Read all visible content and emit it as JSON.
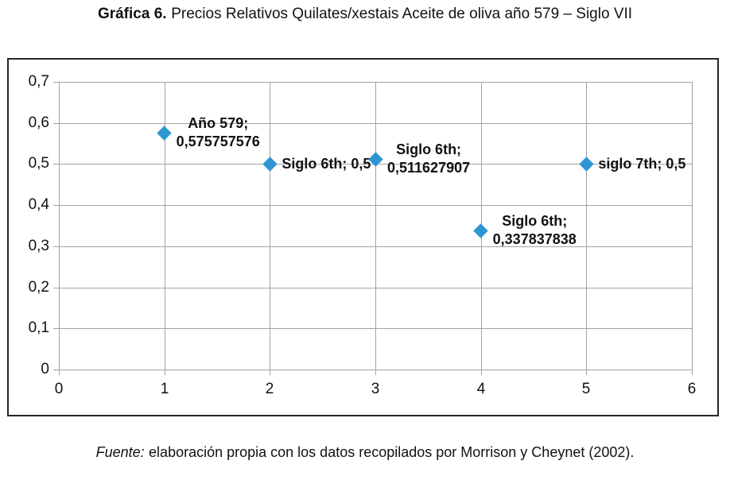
{
  "page": {
    "title_prefix": "Gráfica 6.",
    "title_rest": "Precios Relativos Quilates/xestais Aceite de oliva año 579 – Siglo VII",
    "source_prefix": "Fuente:",
    "source_rest": "elaboración propia con los datos recopilados por Morrison y Cheynet (2002)."
  },
  "colors": {
    "marker": "#2E96D2",
    "grid": "#A3A3A3",
    "chart_border": "#262626",
    "text": "#121212"
  },
  "chart_data": {
    "type": "scatter",
    "title": "Gráfica 6. Precios Relativos Quilates/xestais Aceite de oliva año 579 – Siglo VII",
    "xlabel": "",
    "ylabel": "",
    "xlim": [
      0,
      6
    ],
    "ylim": [
      0,
      0.7
    ],
    "x_ticks": [
      0,
      1,
      2,
      3,
      4,
      5,
      6
    ],
    "x_tick_labels": [
      "0",
      "1",
      "2",
      "3",
      "4",
      "5",
      "6"
    ],
    "y_ticks": [
      0,
      0.1,
      0.2,
      0.3,
      0.4,
      0.5,
      0.6,
      0.7
    ],
    "y_tick_labels": [
      "0",
      "0,1",
      "0,2",
      "0,3",
      "0,4",
      "0,5",
      "0,6",
      "0,7"
    ],
    "grid": true,
    "legend": false,
    "marker_shape": "diamond",
    "points": [
      {
        "name": "Año 579",
        "x": 1,
        "y": 0.575757576,
        "label_lines": [
          "Año 579;",
          "0,575757576"
        ]
      },
      {
        "name": "Siglo 6th",
        "x": 2,
        "y": 0.5,
        "label_lines": [
          "Siglo 6th; 0,5"
        ]
      },
      {
        "name": "Siglo 6th",
        "x": 3,
        "y": 0.511627907,
        "label_lines": [
          "Siglo 6th;",
          "0,511627907"
        ]
      },
      {
        "name": "Siglo 6th",
        "x": 4,
        "y": 0.337837838,
        "label_lines": [
          "Siglo 6th;",
          "0,337837838"
        ]
      },
      {
        "name": "siglo 7th",
        "x": 5,
        "y": 0.5,
        "label_lines": [
          "siglo 7th; 0,5"
        ]
      }
    ]
  }
}
